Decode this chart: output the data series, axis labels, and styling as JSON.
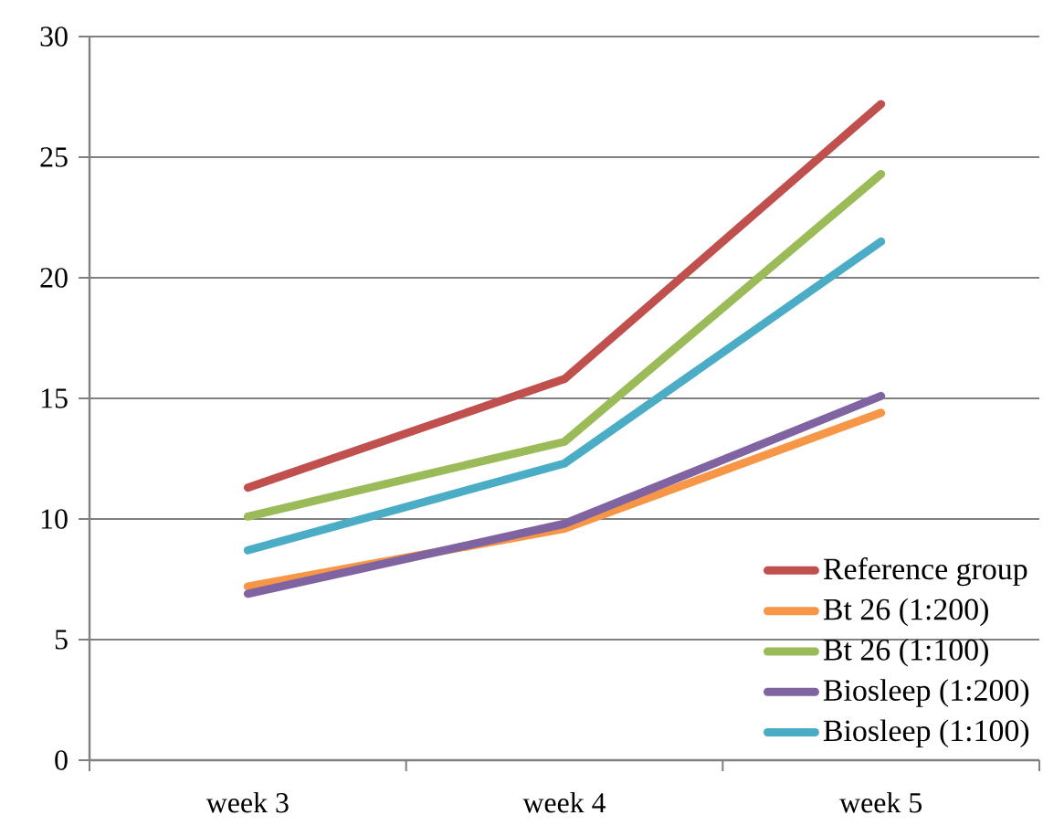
{
  "chart_data": {
    "type": "line",
    "categories": [
      "week 3",
      "week 4",
      "week 5"
    ],
    "series": [
      {
        "name": "Reference group",
        "color": "#c0504d",
        "values": [
          11.3,
          15.8,
          27.2
        ]
      },
      {
        "name": "Bt 26 (1:200)",
        "color": "#f79646",
        "values": [
          7.2,
          9.6,
          14.4
        ]
      },
      {
        "name": "Bt 26 (1:100)",
        "color": "#9bbb59",
        "values": [
          10.1,
          13.2,
          24.3
        ]
      },
      {
        "name": "Biosleep (1:200)",
        "color": "#8064a2",
        "values": [
          6.9,
          9.8,
          15.1
        ]
      },
      {
        "name": "Biosleep (1:100)",
        "color": "#4bacc6",
        "values": [
          8.7,
          12.3,
          21.5
        ]
      }
    ],
    "ylim": [
      0,
      30
    ],
    "yticks": [
      0,
      5,
      10,
      15,
      20,
      25,
      30
    ],
    "grid": "y",
    "legend": "bottom right",
    "marker": "none",
    "line_style": "solid"
  }
}
